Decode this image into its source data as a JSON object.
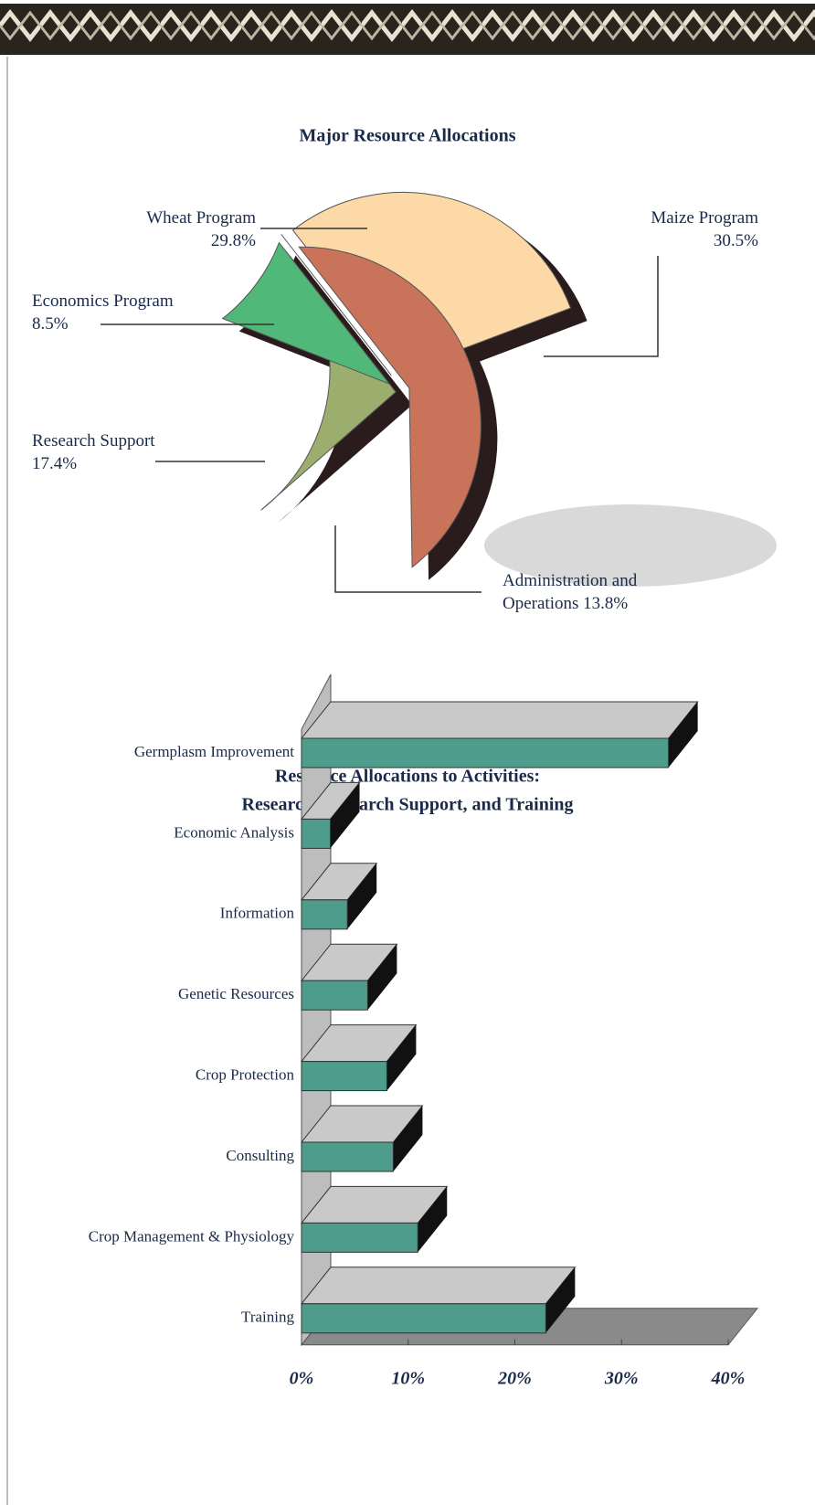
{
  "chart_data": [
    {
      "type": "pie",
      "title": "Major Resource Allocations",
      "categories": [
        "Wheat Program",
        "Maize Program",
        "Administration and Operations",
        "Research Support",
        "Economics Program"
      ],
      "values": [
        29.8,
        30.5,
        13.8,
        17.4,
        8.5
      ],
      "value_labels": [
        "29.8%",
        "30.5%",
        "13.8%",
        "17.4%",
        "8.5%"
      ],
      "colors": [
        "#fcd9a6",
        "#c9735a",
        "#9bae6e",
        "#50b879",
        "#c97c5e"
      ]
    },
    {
      "type": "bar",
      "orientation": "horizontal",
      "title": "Resource Allocations to Activities:",
      "subtitle": "Research, Research Support, and Training",
      "categories": [
        "Germplasm Improvement",
        "Economic Analysis",
        "Information",
        "Genetic Resources",
        "Crop Protection",
        "Consulting",
        "Crop Management & Physiology",
        "Training"
      ],
      "values": [
        34.4,
        2.7,
        4.3,
        6.2,
        8.0,
        8.6,
        10.9,
        22.9
      ],
      "color": "#4e9c8c",
      "xlim": [
        0,
        40
      ],
      "xticks": [
        {
          "value": 0,
          "label": "0%"
        },
        {
          "value": 10,
          "label": "10%"
        },
        {
          "value": 20,
          "label": "20%"
        },
        {
          "value": 30,
          "label": "30%"
        },
        {
          "value": 40,
          "label": "40%"
        }
      ]
    }
  ]
}
